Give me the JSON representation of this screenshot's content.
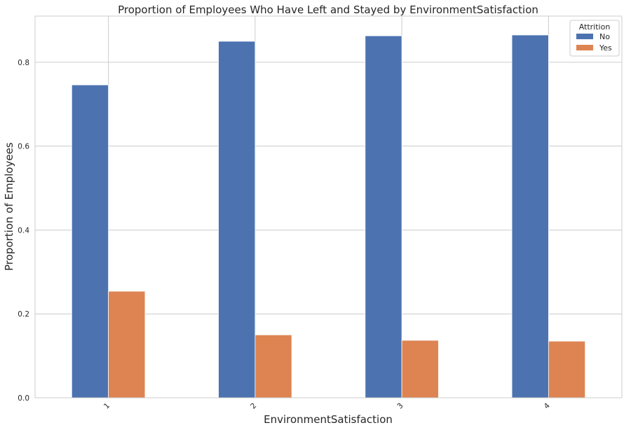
{
  "chart_data": {
    "type": "bar",
    "title": "Proportion of Employees Who Have Left and Stayed by EnvironmentSatisfaction",
    "xlabel": "EnvironmentSatisfaction",
    "ylabel": "Proportion of Employees",
    "categories": [
      "1",
      "2",
      "3",
      "4"
    ],
    "ylim": [
      0,
      0.91
    ],
    "yticks": [
      "0.0",
      "0.2",
      "0.4",
      "0.6",
      "0.8"
    ],
    "grid": true,
    "legend": {
      "title": "Attrition",
      "placement": "top-right"
    },
    "series": [
      {
        "name": "No",
        "color": "#4c72b0",
        "values": [
          0.746,
          0.85,
          0.863,
          0.865
        ]
      },
      {
        "name": "Yes",
        "color": "#dd8452",
        "values": [
          0.254,
          0.15,
          0.137,
          0.135
        ]
      }
    ]
  }
}
